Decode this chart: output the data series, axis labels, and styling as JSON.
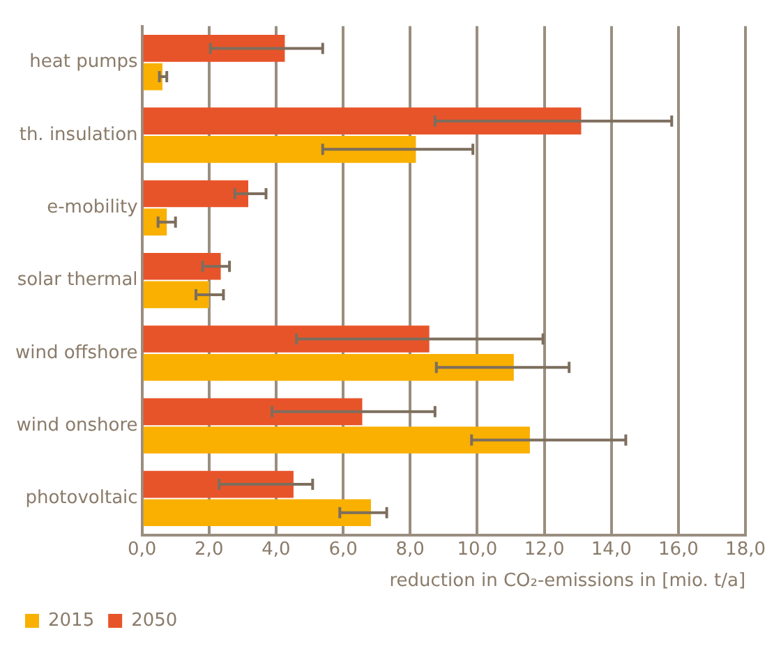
{
  "chart_data": {
    "type": "bar",
    "orientation": "horizontal",
    "xlabel": "reduction in CO₂-emissions in [mio. t/a]",
    "categories": [
      "heat pumps",
      "th. insulation",
      "e-mobility",
      "solar thermal",
      "wind offshore",
      "wind onshore",
      "photovoltaic"
    ],
    "series": [
      {
        "name": "2015",
        "color": "#f9b000",
        "values": [
          0.61,
          8.17,
          0.74,
          2.0,
          11.09,
          11.57,
          6.83
        ],
        "errors": [
          [
            0.52,
            0.74
          ],
          [
            5.39,
            9.87
          ],
          [
            0.48,
            1.0
          ],
          [
            1.61,
            2.43
          ],
          [
            8.78,
            12.74
          ],
          [
            9.83,
            14.43
          ],
          [
            5.9,
            7.3
          ]
        ]
      },
      {
        "name": "2050",
        "color": "#e8542a",
        "values": [
          4.26,
          13.1,
          3.17,
          2.35,
          8.57,
          6.57,
          4.52
        ],
        "errors": [
          [
            2.04,
            5.39
          ],
          [
            8.74,
            15.8
          ],
          [
            2.77,
            3.7
          ],
          [
            1.81,
            2.61
          ],
          [
            4.61,
            11.96
          ],
          [
            3.88,
            8.74
          ],
          [
            2.3,
            5.09
          ]
        ]
      }
    ],
    "xlim": [
      0,
      18
    ],
    "xticks": [
      {
        "value": 0,
        "label": "0,0"
      },
      {
        "value": 2,
        "label": "2,0"
      },
      {
        "value": 4,
        "label": "4,0"
      },
      {
        "value": 6,
        "label": "6,0"
      },
      {
        "value": 8,
        "label": "8,0"
      },
      {
        "value": 10,
        "label": "10,0"
      },
      {
        "value": 12,
        "label": "12,0"
      },
      {
        "value": 14,
        "label": "14,0"
      },
      {
        "value": 16,
        "label": "16,0"
      },
      {
        "value": 18,
        "label": "18,0"
      }
    ],
    "grid": "x",
    "legend": "bottom left"
  }
}
